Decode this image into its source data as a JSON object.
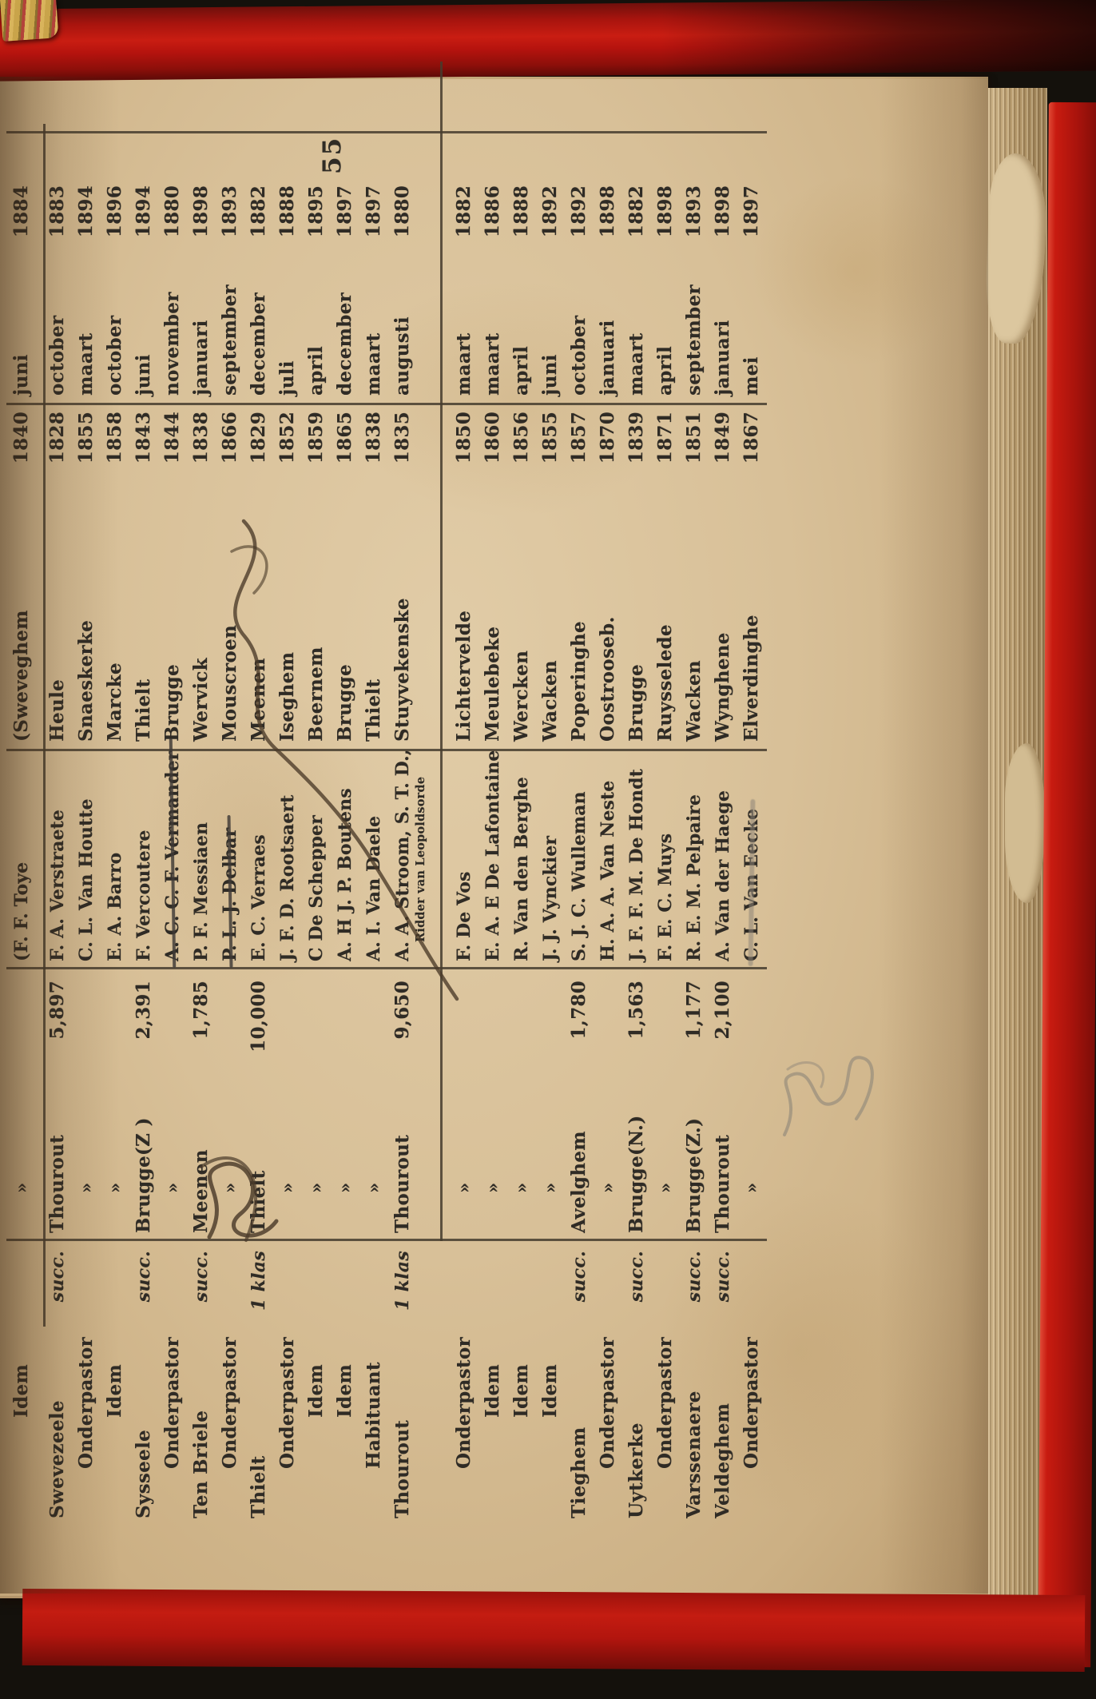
{
  "page": {
    "number": "55"
  },
  "colors": {
    "cover_red": "#b5130e",
    "page_cream": "#d8c098",
    "ink": "#2f2b25"
  },
  "partial_row": {
    "post": "Idem",
    "klas": "",
    "place": "»",
    "name": "(F. F. Toye",
    "birth_place": "(Sweveghem",
    "birth_year": "1840",
    "ord_month": "juni",
    "ord_year": "1884"
  },
  "rows": [
    {
      "post": "Swevezeele",
      "indent": 0,
      "klas": "succ.",
      "place": "Thourout",
      "amount": "5,897",
      "name": "F. A. Verstraete",
      "birth_place": "Heule",
      "birth_year": "1828",
      "ord_month": "october",
      "ord_year": "1883"
    },
    {
      "post": "Onderpastor",
      "indent": 1,
      "klas": "",
      "place": "»",
      "amount": "",
      "name": "C. L. Van Houtte",
      "birth_place": "Snaeskerke",
      "birth_year": "1855",
      "ord_month": "maart",
      "ord_year": "1894"
    },
    {
      "post": "Idem",
      "indent": 2,
      "klas": "",
      "place": "»",
      "amount": "",
      "name": "E. A. Barro",
      "birth_place": "Marcke",
      "birth_year": "1858",
      "ord_month": "october",
      "ord_year": "1896"
    },
    {
      "post": "Sysseele",
      "indent": 0,
      "klas": "succ.",
      "place": "Brugge(Z )",
      "amount": "2,391",
      "name": "F. Vercoutere",
      "birth_place": "Thielt",
      "birth_year": "1843",
      "ord_month": "juni",
      "ord_year": "1894"
    },
    {
      "post": "Onderpastor",
      "indent": 1,
      "klas": "",
      "place": "»",
      "amount": "",
      "name": "A. C. C. F. Vermander",
      "struck": "ink",
      "birth_place": "Brugge",
      "birth_year": "1844",
      "ord_month": "november",
      "ord_year": "1880"
    },
    {
      "post": "Ten Briele",
      "indent": 0,
      "klas": "succ.",
      "place": "Meenen",
      "amount": "1,785",
      "name": "P. F. Messiaen",
      "birth_place": "Wervick",
      "birth_year": "1838",
      "ord_month": "januari",
      "ord_year": "1898"
    },
    {
      "post": "Onderpastor",
      "indent": 1,
      "klas": "",
      "place": "»",
      "amount": "",
      "name": "P. L. J. Delbar",
      "struck": "ink",
      "birth_place": "Mouscroen",
      "birth_year": "1866",
      "ord_month": "september",
      "ord_year": "1893"
    },
    {
      "post": "Thielt",
      "indent": 0,
      "klas": "1 klas",
      "place": "Thielt",
      "amount": "10,000",
      "name": "E. C. Verraes",
      "birth_place": "Meenen",
      "birth_year": "1829",
      "ord_month": "december",
      "ord_year": "1882"
    },
    {
      "post": "Onderpastor",
      "indent": 1,
      "klas": "",
      "place": "»",
      "amount": "",
      "name": "J. F. D. Rootsaert",
      "birth_place": "Iseghem",
      "birth_year": "1852",
      "ord_month": "juli",
      "ord_year": "1888"
    },
    {
      "post": "Idem",
      "indent": 2,
      "klas": "",
      "place": "»",
      "amount": "",
      "name": "C De Schepper",
      "birth_place": "Beernem",
      "birth_year": "1859",
      "ord_month": "april",
      "ord_year": "1895"
    },
    {
      "post": "Idem",
      "indent": 2,
      "klas": "",
      "place": "»",
      "amount": "",
      "name": "A. H J. P. Boutens",
      "birth_place": "Brugge",
      "birth_year": "1865",
      "ord_month": "december",
      "ord_year": "1897"
    },
    {
      "post": "Habituant",
      "indent": 1,
      "klas": "",
      "place": "»",
      "amount": "",
      "name": "A. I. Van Daele",
      "birth_place": "Thielt",
      "birth_year": "1838",
      "ord_month": "maart",
      "ord_year": "1897"
    },
    {
      "post": "Thourout",
      "indent": 0,
      "klas": "1 klas",
      "place": "Thourout",
      "amount": "9,650",
      "name": "A. A. Stroom, S. T. D.,",
      "name_sub": "Ridder van Leopoldsorde",
      "birth_place": "Stuyvekenske",
      "birth_year": "1835",
      "ord_month": "augusti",
      "ord_year": "1880",
      "section_end": true
    },
    {
      "post": "Onderpastor",
      "indent": 1,
      "klas": "",
      "place": "»",
      "amount": "",
      "name": "F. De Vos",
      "birth_place": "Lichtervelde",
      "birth_year": "1850",
      "ord_month": "maart",
      "ord_year": "1882"
    },
    {
      "post": "Idem",
      "indent": 2,
      "klas": "",
      "place": "»",
      "amount": "",
      "name": "E. A. E De Lafontaine",
      "birth_place": "Meulebeke",
      "birth_year": "1860",
      "ord_month": "maart",
      "ord_year": "1886"
    },
    {
      "post": "Idem",
      "indent": 2,
      "klas": "",
      "place": "»",
      "amount": "",
      "name": "R. Van den Berghe",
      "birth_place": "Wercken",
      "birth_year": "1856",
      "ord_month": "april",
      "ord_year": "1888"
    },
    {
      "post": "Idem",
      "indent": 2,
      "klas": "",
      "place": "»",
      "amount": "",
      "name": "J. J. Vynckier",
      "birth_place": "Wacken",
      "birth_year": "1855",
      "ord_month": "juni",
      "ord_year": "1892"
    },
    {
      "post": "Tieghem",
      "indent": 0,
      "klas": "succ.",
      "place": "Avelghem",
      "amount": "1,780",
      "name": "S. J. C. Wulleman",
      "birth_place": "Poperinghe",
      "birth_year": "1857",
      "ord_month": "october",
      "ord_year": "1892"
    },
    {
      "post": "Onderpastor",
      "indent": 1,
      "klas": "",
      "place": "»",
      "amount": "",
      "name": "H. A. A. Van Neste",
      "birth_place": "Oostrooseb.",
      "birth_year": "1870",
      "ord_month": "januari",
      "ord_year": "1898"
    },
    {
      "post": "Uytkerke",
      "indent": 0,
      "klas": "succ.",
      "place": "Brugge(N.)",
      "amount": "1,563",
      "name": "J. F. F. M. De Hondt",
      "birth_place": "Brugge",
      "birth_year": "1839",
      "ord_month": "maart",
      "ord_year": "1882"
    },
    {
      "post": "Onderpastor",
      "indent": 1,
      "klas": "",
      "place": "»",
      "amount": "",
      "name": "F. E. C. Muys",
      "birth_place": "Ruysselede",
      "birth_year": "1871",
      "ord_month": "april",
      "ord_year": "1898"
    },
    {
      "post": "Varssenaere",
      "indent": 0,
      "klas": "succ.",
      "place": "Brugge(Z.)",
      "amount": "1,177",
      "name": "R. E. M. Pelpaire",
      "birth_place": "Wacken",
      "birth_year": "1851",
      "ord_month": "september",
      "ord_year": "1893"
    },
    {
      "post": "Veldeghem",
      "indent": 0,
      "klas": "succ.",
      "place": "Thourout",
      "amount": "2,100",
      "name": "A. Van der Haege",
      "birth_place": "Wynghene",
      "birth_year": "1849",
      "ord_month": "januari",
      "ord_year": "1898"
    },
    {
      "post": "Onderpastor",
      "indent": 1,
      "klas": "",
      "place": "»",
      "amount": "",
      "name": "C. L. Van Eecke",
      "struck": "pencil",
      "birth_place": "Elverdinghe",
      "birth_year": "1867",
      "ord_month": "mei",
      "ord_year": "1897"
    }
  ]
}
